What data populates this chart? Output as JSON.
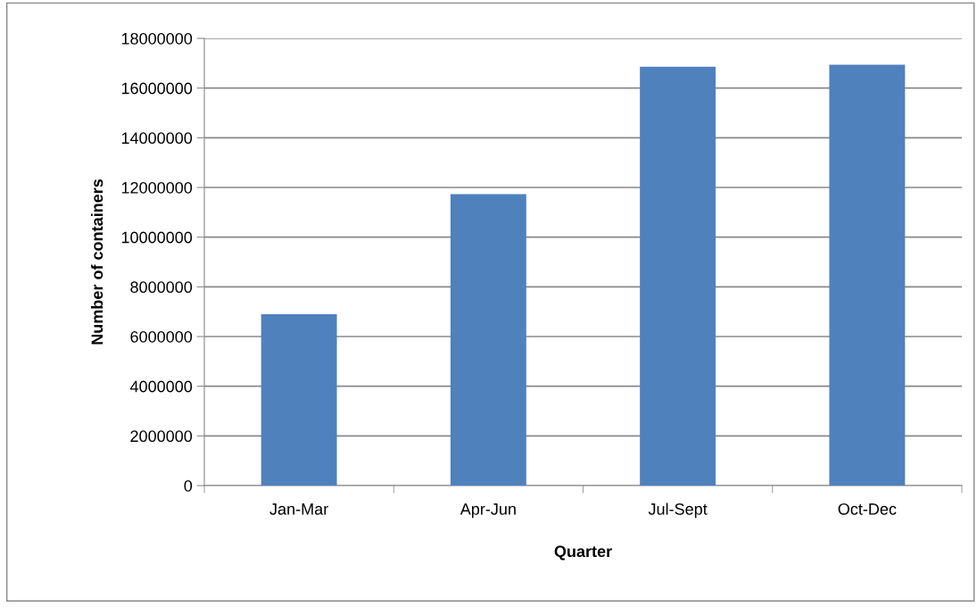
{
  "chart_data": {
    "type": "bar",
    "xlabel": "Quarter",
    "ylabel": "Number of containers",
    "categories": [
      "Jan-Mar",
      "Apr-Jun",
      "Jul-Sept",
      "Oct-Dec"
    ],
    "values": [
      6900000,
      11730000,
      16860000,
      16940000
    ],
    "color": "#4f81bd",
    "ylim": [
      0,
      18000000
    ],
    "yticks": [
      0,
      2000000,
      4000000,
      6000000,
      8000000,
      10000000,
      12000000,
      14000000,
      16000000,
      18000000
    ],
    "grid": "y",
    "legend": false
  }
}
